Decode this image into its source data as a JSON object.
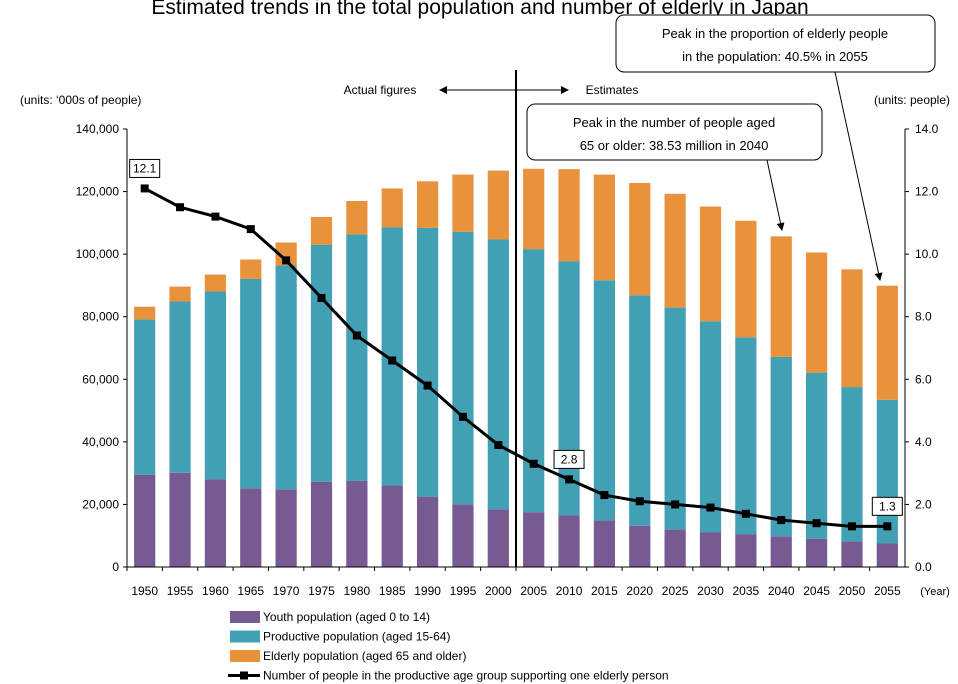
{
  "chart_data": {
    "type": "bar-line",
    "title": "Estimated trends in the total population and number of elderly in Japan",
    "y_label": "(units: ‘000s of people)",
    "y2_label": "(units: people)",
    "x_label": "(Year)",
    "categories": [
      "1950",
      "1955",
      "1960",
      "1965",
      "1970",
      "1975",
      "1980",
      "1985",
      "1990",
      "1995",
      "2000",
      "2005",
      "2010",
      "2015",
      "2020",
      "2025",
      "2030",
      "2035",
      "2040",
      "2045",
      "2050",
      "2055"
    ],
    "stacked": true,
    "series": [
      {
        "name": "Youth population (aged 0 to 14)",
        "color": "#775a92",
        "values": [
          29428,
          30123,
          28067,
          25166,
          24823,
          27221,
          27507,
          26033,
          22486,
          20014,
          18472,
          17521,
          16479,
          14841,
          13201,
          11956,
          11150,
          10512,
          9827,
          9036,
          8214,
          7516
        ]
      },
      {
        "name": "Productive population (aged 15-64)",
        "color": "#42a0b5",
        "values": [
          49658,
          54729,
          60002,
          66928,
          71566,
          75807,
          78835,
          82506,
          85904,
          87165,
          86220,
          84092,
          81285,
          76807,
          73635,
          70960,
          67404,
          62919,
          57335,
          53089,
          49297,
          45951
        ]
      },
      {
        "name": "Elderly population (aged 65 and older)",
        "color": "#e8923c",
        "values": [
          4109,
          4786,
          5398,
          6181,
          7331,
          8865,
          10647,
          12468,
          14895,
          18261,
          22005,
          25672,
          29412,
          33781,
          35899,
          36354,
          36670,
          37249,
          38527,
          38407,
          37641,
          36463
        ]
      },
      {
        "name": "Number of people in the productive age group supporting one elderly person",
        "type": "line",
        "axis": "y2",
        "color": "#000000",
        "values": [
          12.1,
          11.5,
          11.2,
          10.8,
          9.8,
          8.6,
          7.4,
          6.6,
          5.8,
          4.8,
          3.9,
          3.3,
          2.8,
          2.3,
          2.1,
          2.0,
          1.9,
          1.7,
          1.5,
          1.4,
          1.3,
          1.3
        ]
      }
    ],
    "ylim": [
      0,
      140000
    ],
    "yticks": [
      0,
      {
        "value": 20000,
        "label": "20,000"
      },
      {
        "value": 40000,
        "label": "40,000"
      },
      {
        "value": 60000,
        "label": "60,000"
      },
      {
        "value": 80000,
        "label": "80,000"
      },
      {
        "value": 100000,
        "label": "100,000"
      },
      {
        "value": 120000,
        "label": "120,000"
      },
      {
        "value": 140000,
        "label": "140,000"
      }
    ],
    "y2lim": [
      0,
      14
    ],
    "y2ticks": [
      {
        "value": 0,
        "label": "0.0"
      },
      {
        "value": 2,
        "label": "2.0"
      },
      {
        "value": 4,
        "label": "4.0"
      },
      {
        "value": 6,
        "label": "6.0"
      },
      {
        "value": 8,
        "label": "8.0"
      },
      {
        "value": 10,
        "label": "10.0"
      },
      {
        "value": 12,
        "label": "12.0"
      },
      {
        "value": 14,
        "label": "14.0"
      }
    ],
    "annotations": {
      "actual": "Actual figures",
      "estimates": "Estimates",
      "peak_number": [
        "Peak in the number of people aged",
        "65 or older: 38.53 million in 2040"
      ],
      "peak_proportion": [
        "Peak in the proportion of elderly people",
        "in the population: 40.5% in 2055"
      ]
    }
  }
}
